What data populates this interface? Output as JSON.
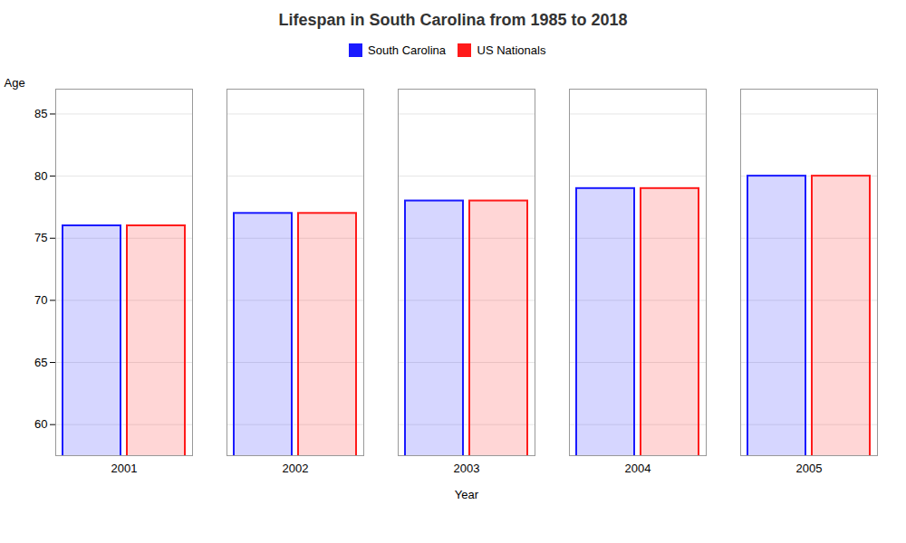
{
  "chart_data": {
    "type": "bar",
    "title": "Lifespan in South Carolina from 1985 to 2018",
    "xlabel": "Year",
    "ylabel": "Age",
    "categories": [
      "2001",
      "2002",
      "2003",
      "2004",
      "2005"
    ],
    "series": [
      {
        "name": "South Carolina",
        "color": "#1a1aff",
        "values": [
          76.0,
          77.0,
          78.0,
          79.0,
          80.0
        ]
      },
      {
        "name": "US Nationals",
        "color": "#ff1a1a",
        "values": [
          76.0,
          77.0,
          78.0,
          79.0,
          80.0
        ]
      }
    ],
    "ylim": [
      57.5,
      87
    ],
    "yticks": [
      60,
      65,
      70,
      75,
      80,
      85
    ],
    "grid": true,
    "legend": "top"
  }
}
